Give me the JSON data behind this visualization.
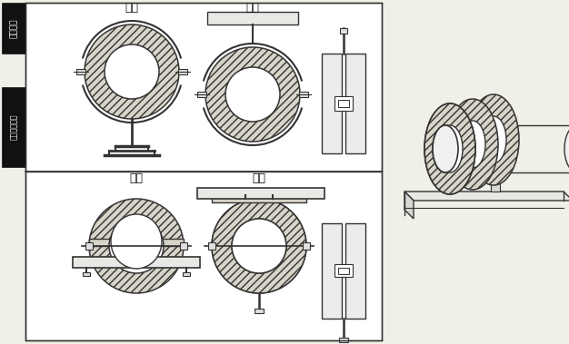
{
  "bg_color": "#f0efe8",
  "white": "#ffffff",
  "black": "#111111",
  "lc": "#333333",
  "label1": "保温圆码",
  "label2": "保温平底座码",
  "title1a": "座装",
  "title1b": "吊装",
  "title2a": "座装",
  "title2b": "倒装",
  "hatch_fc": "#d8d4c8",
  "section_bg": "#fafaf7"
}
